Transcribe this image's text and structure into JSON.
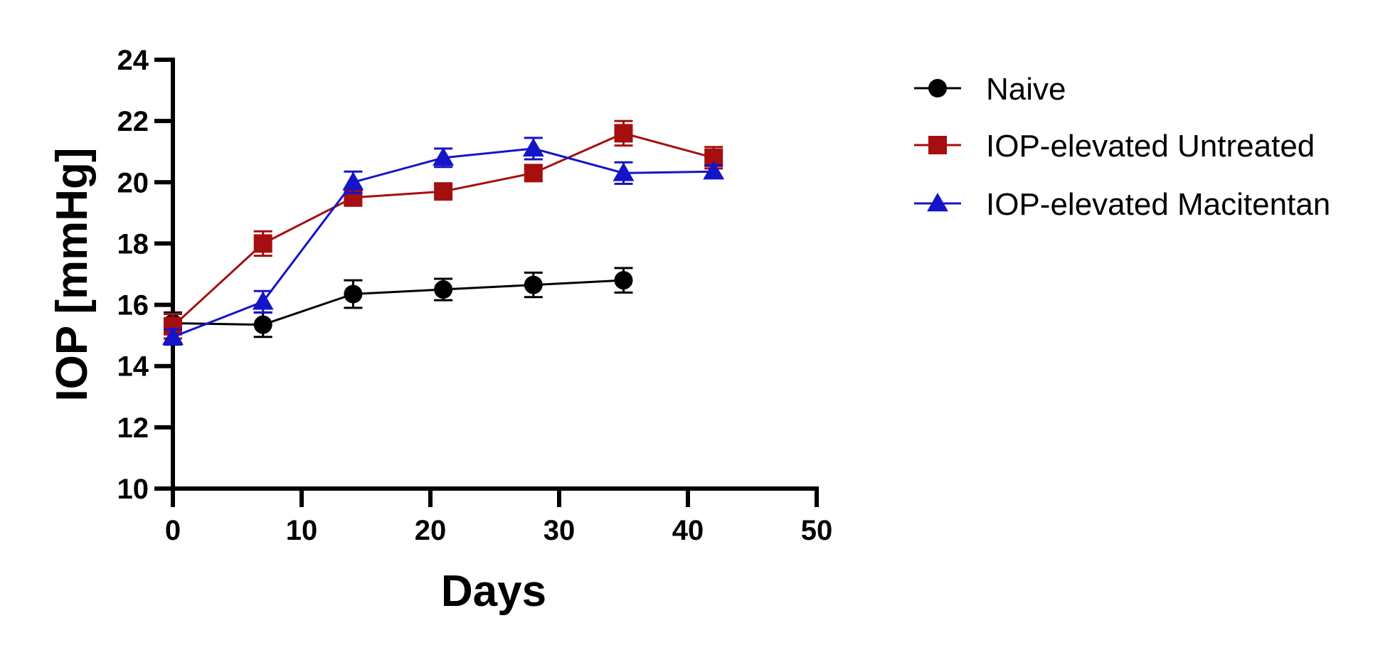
{
  "chart_data": {
    "type": "line",
    "title": "",
    "xlabel": "Days",
    "ylabel": "IOP [mmHg]",
    "xlim": [
      0,
      50
    ],
    "ylim": [
      10,
      24
    ],
    "xticks": [
      0,
      10,
      20,
      30,
      40,
      50
    ],
    "yticks": [
      10,
      12,
      14,
      16,
      18,
      20,
      22,
      24
    ],
    "grid": false,
    "legend_position": "top-right, outside plot",
    "series": [
      {
        "name": "Naive",
        "color": "#000000",
        "marker": "circle",
        "x": [
          0,
          7,
          14,
          21,
          28,
          35
        ],
        "y": [
          15.4,
          15.35,
          16.35,
          16.5,
          16.65,
          16.8
        ],
        "error": [
          0.35,
          0.4,
          0.45,
          0.35,
          0.4,
          0.4
        ]
      },
      {
        "name": "IOP-elevated Untreated",
        "color": "#a50f0f",
        "marker": "square",
        "x": [
          0,
          7,
          14,
          21,
          28,
          35,
          42
        ],
        "y": [
          15.3,
          18.0,
          19.5,
          19.7,
          20.3,
          21.6,
          20.8
        ],
        "error": [
          0.4,
          0.4,
          0.25,
          0.2,
          0.25,
          0.4,
          0.35
        ]
      },
      {
        "name": "IOP-elevated Macitentan",
        "color": "#1414c8",
        "marker": "triangle",
        "x": [
          0,
          7,
          14,
          21,
          28,
          35,
          42
        ],
        "y": [
          14.95,
          16.1,
          20.0,
          20.8,
          21.1,
          20.3,
          20.35
        ],
        "error": [
          0.25,
          0.35,
          0.35,
          0.3,
          0.35,
          0.35,
          0.2
        ]
      }
    ]
  }
}
